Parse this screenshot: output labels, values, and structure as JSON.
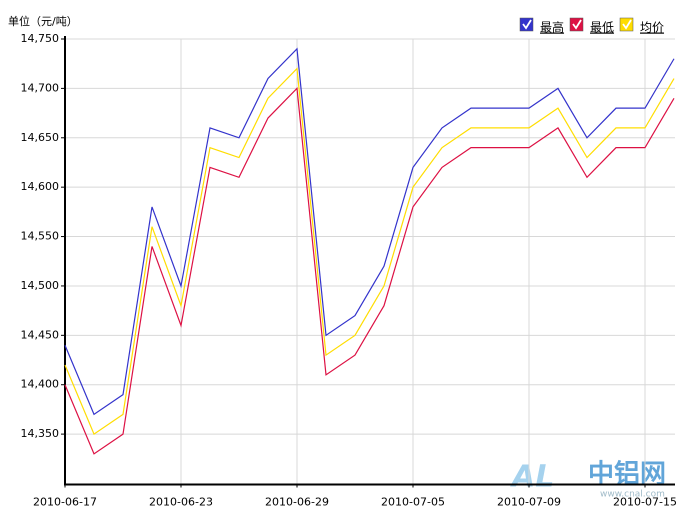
{
  "chart_data": {
    "type": "line",
    "y_axis_label": "单位（元/吨）",
    "categories": [
      "2010-06-17",
      null,
      null,
      null,
      "2010-06-23",
      null,
      null,
      null,
      "2010-06-29",
      null,
      null,
      null,
      "2010-07-05",
      null,
      null,
      null,
      "2010-07-09",
      null,
      null,
      null,
      "2010-07-15",
      null
    ],
    "series": [
      {
        "name": "最高",
        "color": "#3333cc",
        "values": [
          14440,
          14370,
          14390,
          14580,
          14500,
          14660,
          14650,
          14710,
          14740,
          14450,
          14470,
          14520,
          14620,
          14660,
          14680,
          14680,
          14680,
          14700,
          14650,
          14680,
          14680,
          14730
        ]
      },
      {
        "name": "最低",
        "color": "#dd1144",
        "values": [
          14400,
          14330,
          14350,
          14540,
          14460,
          14620,
          14610,
          14670,
          14700,
          14410,
          14430,
          14480,
          14580,
          14620,
          14640,
          14640,
          14640,
          14660,
          14610,
          14640,
          14640,
          14690
        ]
      },
      {
        "name": "均价",
        "color": "#ffdd00",
        "values": [
          14420,
          14350,
          14370,
          14560,
          14480,
          14640,
          14630,
          14690,
          14720,
          14430,
          14450,
          14500,
          14600,
          14640,
          14660,
          14660,
          14660,
          14680,
          14630,
          14660,
          14660,
          14710
        ]
      }
    ],
    "ylim": [
      14300,
      14750
    ],
    "yticks": [
      {
        "value": 14350,
        "label": "14,350"
      },
      {
        "value": 14400,
        "label": "14,400"
      },
      {
        "value": 14450,
        "label": "14,450"
      },
      {
        "value": 14500,
        "label": "14,500"
      },
      {
        "value": 14550,
        "label": "14,550"
      },
      {
        "value": 14600,
        "label": "14,600"
      },
      {
        "value": 14650,
        "label": "14,650"
      },
      {
        "value": 14700,
        "label": "14,700"
      },
      {
        "value": 14750,
        "label": "14,750"
      }
    ],
    "grid": true,
    "legend_position": "top-right",
    "watermark": {
      "logo": "AL",
      "name": "中铝网",
      "url": "www.cnal.com"
    }
  }
}
